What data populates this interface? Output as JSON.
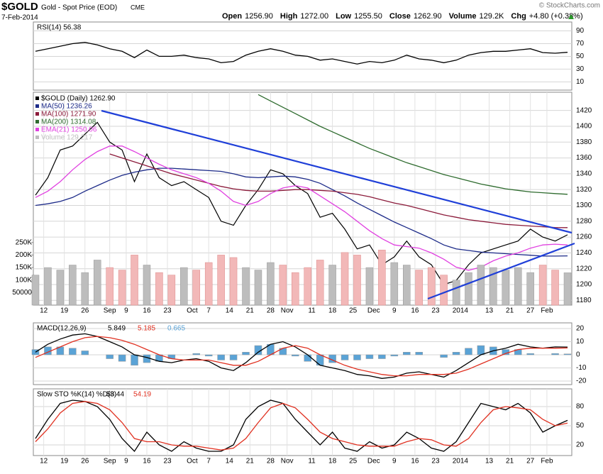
{
  "header": {
    "symbol": "$GOLD",
    "name": "Gold - Spot Price (EOD)",
    "exchange": "CME",
    "date": "7-Feb-2014",
    "credit": "© StockCharts.com",
    "quote": [
      {
        "label": "Open",
        "value": "1256.90"
      },
      {
        "label": "High",
        "value": "1272.00"
      },
      {
        "label": "Low",
        "value": "1255.50"
      },
      {
        "label": "Close",
        "value": "1262.90"
      },
      {
        "label": "Volume",
        "value": "129.2K"
      },
      {
        "label": "Chg",
        "value": "+4.80 (+0.38%)"
      }
    ]
  },
  "chart_data": [
    {
      "type": "line",
      "title": "RSI(14) 56.38",
      "xlim": [
        0,
        129
      ],
      "ylim": [
        -3,
        104
      ],
      "yticks": [
        10,
        30,
        50,
        70,
        90
      ],
      "grid": true,
      "x": [
        0,
        3,
        6,
        9,
        12,
        15,
        18,
        21,
        24,
        27,
        30,
        33,
        36,
        39,
        42,
        45,
        48,
        51,
        54,
        57,
        60,
        63,
        66,
        69,
        72,
        75,
        78,
        81,
        84,
        87,
        90,
        93,
        96,
        99,
        102,
        105,
        108,
        111,
        114,
        117,
        120,
        123,
        126,
        129
      ],
      "series": [
        {
          "color": "#000000",
          "values": [
            58,
            62,
            66,
            70,
            72,
            68,
            62,
            58,
            48,
            60,
            50,
            50,
            52,
            48,
            46,
            40,
            42,
            52,
            58,
            62,
            58,
            52,
            50,
            44,
            46,
            42,
            38,
            42,
            40,
            44,
            52,
            46,
            44,
            40,
            44,
            52,
            56,
            58,
            58,
            60,
            62,
            56,
            55,
            56.38
          ]
        }
      ]
    },
    {
      "type": "line",
      "xlim": [
        0,
        129
      ],
      "ylim": [
        1174,
        1443
      ],
      "yticks": [
        1180,
        1200,
        1220,
        1240,
        1260,
        1280,
        1300,
        1320,
        1340,
        1360,
        1380,
        1400,
        1420
      ],
      "grid": true,
      "y2lim": [
        0,
        850000
      ],
      "y2ticks": [
        {
          "value": 250000,
          "label": "250K"
        },
        {
          "value": 200000,
          "label": "200K"
        },
        {
          "value": 150000,
          "label": "150K"
        },
        {
          "value": 100000,
          "label": "100K"
        },
        50000
      ],
      "xticks": [
        {
          "value": 2,
          "label": "12"
        },
        {
          "value": 7,
          "label": "19"
        },
        {
          "value": 12,
          "label": "26"
        },
        {
          "value": 18,
          "label": "Sep"
        },
        {
          "value": 22,
          "label": "9"
        },
        {
          "value": 27,
          "label": "16"
        },
        {
          "value": 32,
          "label": "23"
        },
        {
          "value": 38,
          "label": "Oct"
        },
        {
          "value": 42,
          "label": "7"
        },
        {
          "value": 47,
          "label": "14"
        },
        {
          "value": 52,
          "label": "21"
        },
        {
          "value": 57,
          "label": "28"
        },
        {
          "value": 61,
          "label": "Nov"
        },
        {
          "value": 67,
          "label": "11"
        },
        {
          "value": 72,
          "label": "18"
        },
        {
          "value": 77,
          "label": "25"
        },
        {
          "value": 82,
          "label": "Dec"
        },
        {
          "value": 87,
          "label": "9"
        },
        {
          "value": 92,
          "label": "16"
        },
        {
          "value": 97,
          "label": "23"
        },
        {
          "value": 103,
          "label": "2014"
        },
        {
          "value": 110,
          "label": "13"
        },
        {
          "value": 115,
          "label": "21"
        },
        {
          "value": 120,
          "label": "27"
        },
        {
          "value": 124,
          "label": "Feb"
        }
      ],
      "x": [
        0,
        3,
        6,
        9,
        12,
        15,
        18,
        21,
        24,
        27,
        30,
        33,
        36,
        39,
        42,
        45,
        48,
        51,
        54,
        57,
        60,
        63,
        66,
        69,
        72,
        75,
        78,
        81,
        84,
        87,
        90,
        93,
        96,
        99,
        102,
        105,
        108,
        111,
        114,
        117,
        120,
        123,
        126,
        129
      ],
      "series": [
        {
          "name": "$GOLD (Daily) 1262.90",
          "color": "#000000",
          "values": [
            1313,
            1335,
            1370,
            1375,
            1390,
            1405,
            1380,
            1370,
            1330,
            1365,
            1335,
            1325,
            1330,
            1320,
            1310,
            1280,
            1275,
            1300,
            1320,
            1345,
            1340,
            1325,
            1315,
            1285,
            1290,
            1270,
            1245,
            1250,
            1225,
            1235,
            1255,
            1235,
            1225,
            1200,
            1205,
            1225,
            1240,
            1245,
            1250,
            1255,
            1270,
            1260,
            1255,
            1262.9
          ]
        },
        {
          "name": "MA(50) 1236.26",
          "color": "#1c2a88",
          "values": [
            1300,
            1302,
            1305,
            1310,
            1318,
            1325,
            1332,
            1338,
            1342,
            1345,
            1347,
            1347,
            1346,
            1345,
            1344,
            1343,
            1340,
            1336,
            1335,
            1336,
            1337,
            1336,
            1333,
            1328,
            1320,
            1312,
            1303,
            1295,
            1287,
            1279,
            1272,
            1265,
            1258,
            1250,
            1245,
            1243,
            1241,
            1240,
            1239,
            1238,
            1237,
            1236,
            1236,
            1236.26
          ]
        },
        {
          "name": "MA(100) 1271.90",
          "color": "#8b1a3a",
          "values": [
            null,
            null,
            null,
            null,
            null,
            null,
            1365,
            1360,
            1355,
            1350,
            1345,
            1340,
            1336,
            1332,
            1328,
            1324,
            1321,
            1319,
            1318,
            1318,
            1319,
            1320,
            1320,
            1319,
            1318,
            1316,
            1314,
            1311,
            1307,
            1303,
            1300,
            1296,
            1292,
            1288,
            1285,
            1282,
            1280,
            1278,
            1276,
            1275,
            1274,
            1273,
            1272,
            1271.9
          ]
        },
        {
          "name": "MA(200) 1314.08",
          "color": "#2e6b2e",
          "values": [
            null,
            null,
            null,
            null,
            null,
            null,
            null,
            null,
            null,
            null,
            null,
            null,
            null,
            null,
            null,
            null,
            null,
            null,
            1440,
            1432,
            1424,
            1416,
            1408,
            1400,
            1393,
            1386,
            1379,
            1372,
            1366,
            1360,
            1354,
            1349,
            1344,
            1339,
            1335,
            1331,
            1327,
            1324,
            1321,
            1319,
            1317,
            1316,
            1315,
            1314.08
          ]
        },
        {
          "name": "EMA(21) 1250.06",
          "color": "#e040e0",
          "values": [
            1310,
            1318,
            1330,
            1345,
            1358,
            1368,
            1375,
            1375,
            1368,
            1360,
            1352,
            1345,
            1340,
            1335,
            1328,
            1318,
            1305,
            1300,
            1305,
            1315,
            1322,
            1325,
            1322,
            1312,
            1302,
            1292,
            1280,
            1268,
            1258,
            1250,
            1248,
            1246,
            1240,
            1232,
            1222,
            1218,
            1222,
            1230,
            1236,
            1240,
            1246,
            1250,
            1251,
            1250.06
          ]
        },
        {
          "name": "Volume 129,217",
          "color": "#bdbdbd",
          "down_color": "#f2b8b8",
          "kind": "bar",
          "axis": "y2",
          "values": [
            120000,
            150000,
            140000,
            160000,
            130000,
            180000,
            150000,
            140000,
            200000,
            160000,
            130000,
            120000,
            150000,
            140000,
            170000,
            200000,
            190000,
            150000,
            140000,
            170000,
            160000,
            130000,
            150000,
            180000,
            160000,
            210000,
            200000,
            150000,
            220000,
            170000,
            160000,
            140000,
            150000,
            120000,
            100000,
            130000,
            160000,
            150000,
            140000,
            150000,
            130000,
            160000,
            140000,
            129217
          ]
        }
      ]
    },
    {
      "type": "line",
      "title": "MACD(12,26,9)",
      "xlim": [
        0,
        129
      ],
      "ylim": [
        -22.7,
        24.3
      ],
      "yticks": [
        20,
        10,
        0,
        -10,
        -20
      ],
      "grid": true,
      "x": [
        0,
        3,
        6,
        9,
        12,
        15,
        18,
        21,
        24,
        27,
        30,
        33,
        36,
        39,
        42,
        45,
        48,
        51,
        54,
        57,
        60,
        63,
        66,
        69,
        72,
        75,
        78,
        81,
        84,
        87,
        90,
        93,
        96,
        99,
        102,
        105,
        108,
        111,
        114,
        117,
        120,
        123,
        126,
        129
      ],
      "series": [
        {
          "color": "#5aa3d6",
          "kind": "bar",
          "values": [
            4,
            6,
            6,
            5,
            3,
            0,
            -3,
            -5,
            -8,
            -6,
            -5,
            -3,
            0,
            1,
            -1,
            -4,
            -4,
            2,
            7,
            8,
            5,
            -1,
            -5,
            -8,
            -6,
            -4,
            -4,
            -3,
            -3,
            -1,
            2,
            2,
            0,
            -2,
            2,
            5,
            7,
            6,
            4,
            4,
            1,
            0,
            1,
            0.665
          ]
        },
        {
          "color": "#000000",
          "values": [
            2,
            8,
            12,
            15,
            16,
            14,
            10,
            6,
            0,
            -2,
            -5,
            -6,
            -4,
            -3,
            -5,
            -10,
            -12,
            -6,
            2,
            8,
            10,
            6,
            0,
            -8,
            -10,
            -12,
            -15,
            -16,
            -18,
            -17,
            -14,
            -13,
            -15,
            -17,
            -12,
            -6,
            0,
            3,
            5,
            8,
            6,
            5,
            6,
            5.849
          ]
        },
        {
          "color": "#e03020",
          "values": [
            -2,
            2,
            6,
            10,
            13,
            14,
            13,
            11,
            8,
            4,
            0,
            -3,
            -4,
            -4,
            -4,
            -6,
            -8,
            -8,
            -5,
            0,
            5,
            7,
            5,
            0,
            -4,
            -8,
            -11,
            -13,
            -15,
            -16,
            -16,
            -15,
            -15,
            -15,
            -14,
            -11,
            -7,
            -3,
            1,
            4,
            5,
            5,
            5,
            5.185
          ]
        }
      ]
    },
    {
      "type": "line",
      "title": "Slow STO %K(14) %D(3)",
      "xlim": [
        0,
        129
      ],
      "ylim": [
        3.3,
        107.8
      ],
      "yticks": [
        80,
        50,
        20
      ],
      "grid": true,
      "xticks": [
        {
          "value": 2,
          "label": "12"
        },
        {
          "value": 7,
          "label": "19"
        },
        {
          "value": 12,
          "label": "26"
        },
        {
          "value": 18,
          "label": "Sep"
        },
        {
          "value": 22,
          "label": "9"
        },
        {
          "value": 27,
          "label": "16"
        },
        {
          "value": 32,
          "label": "23"
        },
        {
          "value": 38,
          "label": "Oct"
        },
        {
          "value": 42,
          "label": "7"
        },
        {
          "value": 47,
          "label": "14"
        },
        {
          "value": 52,
          "label": "21"
        },
        {
          "value": 57,
          "label": "28"
        },
        {
          "value": 61,
          "label": "Nov"
        },
        {
          "value": 67,
          "label": "11"
        },
        {
          "value": 72,
          "label": "18"
        },
        {
          "value": 77,
          "label": "25"
        },
        {
          "value": 82,
          "label": "Dec"
        },
        {
          "value": 87,
          "label": "9"
        },
        {
          "value": 92,
          "label": "16"
        },
        {
          "value": 97,
          "label": "23"
        },
        {
          "value": 103,
          "label": "2014"
        },
        {
          "value": 110,
          "label": "13"
        },
        {
          "value": 115,
          "label": "21"
        },
        {
          "value": 120,
          "label": "27"
        },
        {
          "value": 124,
          "label": "Feb"
        }
      ],
      "x": [
        0,
        3,
        6,
        9,
        12,
        15,
        18,
        21,
        24,
        27,
        30,
        33,
        36,
        39,
        42,
        45,
        48,
        51,
        54,
        57,
        60,
        63,
        66,
        69,
        72,
        75,
        78,
        81,
        84,
        87,
        90,
        93,
        96,
        99,
        102,
        105,
        108,
        111,
        114,
        117,
        120,
        123,
        126,
        129
      ],
      "series": [
        {
          "color": "#000000",
          "values": [
            30,
            60,
            85,
            90,
            88,
            80,
            60,
            30,
            10,
            40,
            20,
            10,
            25,
            15,
            10,
            10,
            20,
            60,
            80,
            90,
            85,
            60,
            40,
            20,
            40,
            15,
            10,
            25,
            15,
            20,
            40,
            30,
            15,
            10,
            25,
            55,
            85,
            80,
            75,
            85,
            70,
            40,
            50,
            58.44
          ]
        },
        {
          "color": "#e03020",
          "values": [
            25,
            45,
            70,
            85,
            88,
            85,
            75,
            55,
            30,
            25,
            25,
            20,
            18,
            18,
            15,
            12,
            15,
            30,
            55,
            78,
            85,
            78,
            60,
            40,
            30,
            25,
            20,
            18,
            18,
            18,
            25,
            30,
            28,
            20,
            18,
            30,
            55,
            75,
            80,
            78,
            75,
            60,
            50,
            54.19
          ]
        }
      ]
    }
  ]
}
